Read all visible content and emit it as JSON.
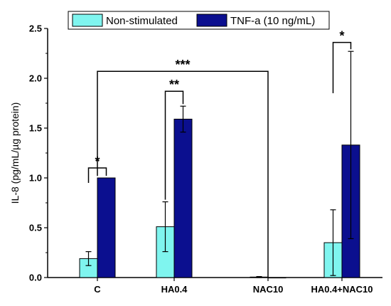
{
  "chart_data": {
    "type": "bar",
    "categories": [
      "C",
      "HA0.4",
      "NAC10",
      "HA0.4+NAC10"
    ],
    "series": [
      {
        "name": "Non-stimulated",
        "values": [
          0.19,
          0.51,
          0.005,
          0.35
        ],
        "errors": [
          0.07,
          0.25,
          0.005,
          0.33
        ],
        "color": "#7ff5ef"
      },
      {
        "name": "TNF-a (10 ng/mL)",
        "values": [
          1.0,
          1.59,
          0.0,
          1.33
        ],
        "errors": [
          0.0,
          0.13,
          0.0,
          0.94
        ],
        "color": "#0b0f8f"
      }
    ],
    "title": "",
    "xlabel": "",
    "ylabel": "IL-8 (pg/mL/µg protein)",
    "ylim": [
      0,
      2.5
    ],
    "yticks": [
      "0.0",
      "0.5",
      "1.0",
      "1.5",
      "2.0",
      "2.5"
    ],
    "legend_position": "top",
    "annotations": [
      {
        "text": "*",
        "type": "within",
        "category": 0,
        "y": 1.1
      },
      {
        "text": "**",
        "type": "within",
        "category": 1,
        "y": 1.87
      },
      {
        "text": "*",
        "type": "within",
        "category": 3,
        "y": 2.36
      },
      {
        "text": "***",
        "type": "between",
        "from_category": 0,
        "to_category": 2,
        "y": 2.07
      }
    ]
  }
}
